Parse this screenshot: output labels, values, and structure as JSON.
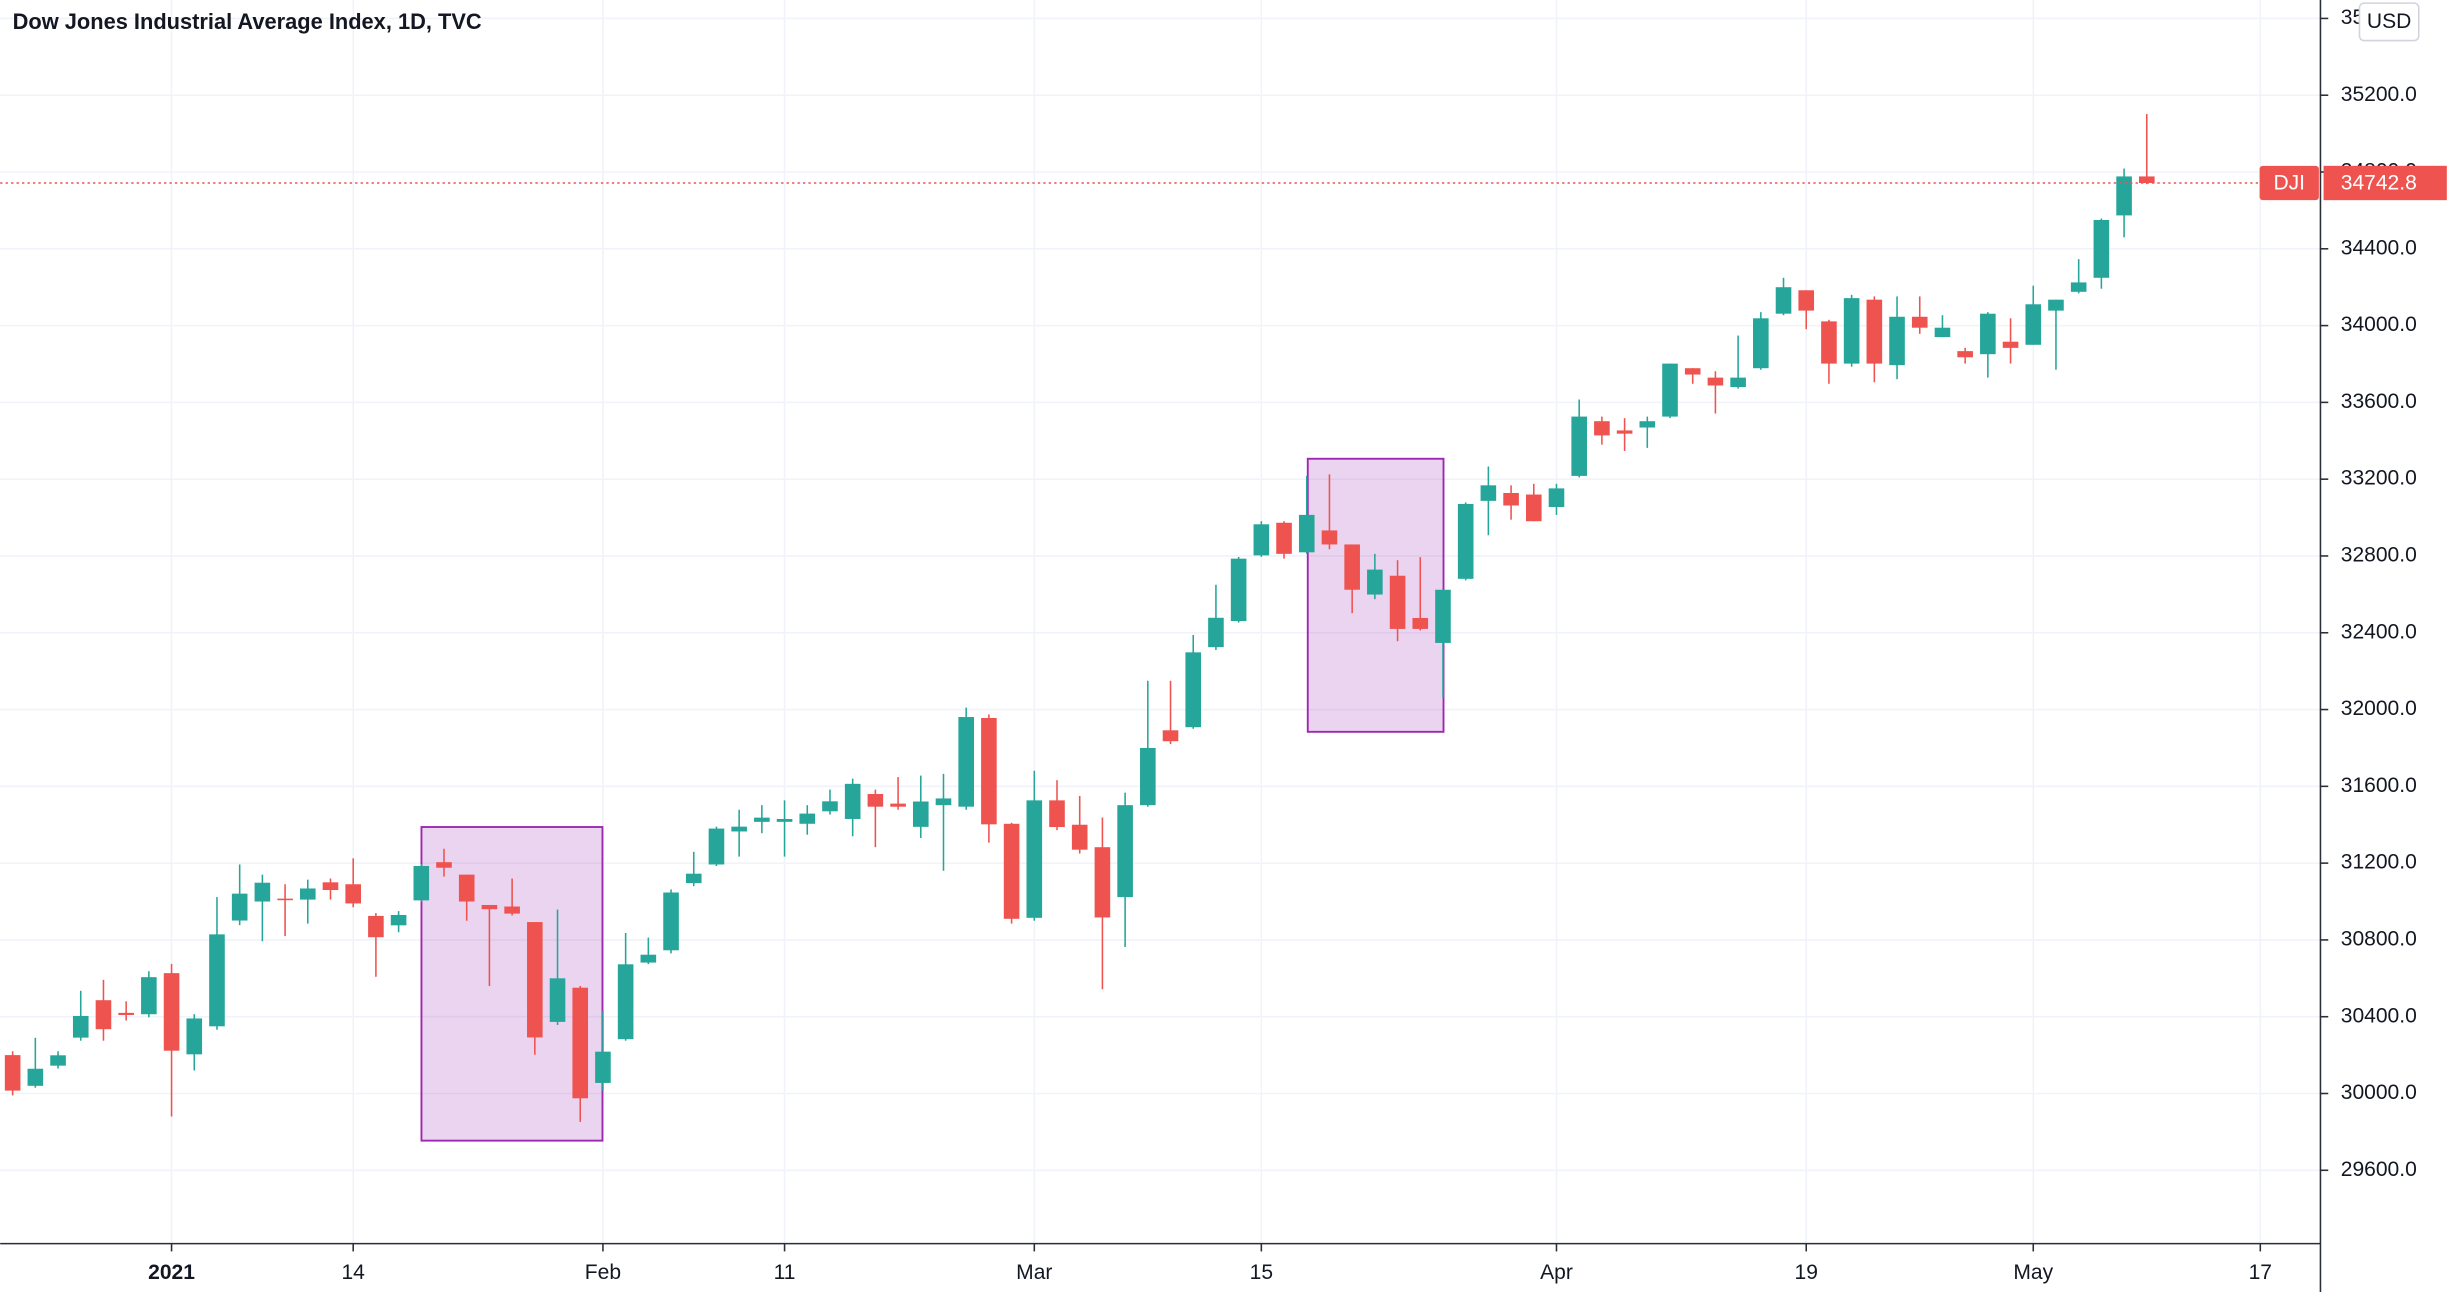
{
  "chart_data": {
    "type": "candlestick",
    "title": "Dow Jones Industrial Average Index, 1D, TVC",
    "symbol": "DJI",
    "currency": "USD",
    "last_price": 34742.8,
    "up_color": "#26a69a",
    "down_color": "#ef5350",
    "ylim": [
      29218,
      35696
    ],
    "yticks": [
      {
        "value": 29600,
        "label": "29600.0"
      },
      {
        "value": 30000,
        "label": "30000.0"
      },
      {
        "value": 30400,
        "label": "30400.0"
      },
      {
        "value": 30800,
        "label": "30800.0"
      },
      {
        "value": 31200,
        "label": "31200.0"
      },
      {
        "value": 31600,
        "label": "31600.0"
      },
      {
        "value": 32000,
        "label": "32000.0"
      },
      {
        "value": 32400,
        "label": "32400.0"
      },
      {
        "value": 32800,
        "label": "32800.0"
      },
      {
        "value": 33200,
        "label": "33200.0"
      },
      {
        "value": 33600,
        "label": "33600.0"
      },
      {
        "value": 34000,
        "label": "34000.0"
      },
      {
        "value": 34400,
        "label": "34400.0"
      },
      {
        "value": 34800,
        "label": "34800.0"
      },
      {
        "value": 35200,
        "label": "35200.0"
      },
      {
        "value": 35600,
        "label": "35600.0"
      }
    ],
    "grid": true,
    "categories": [
      null,
      null,
      null,
      null,
      null,
      null,
      null,
      "2021",
      null,
      null,
      null,
      null,
      null,
      null,
      null,
      "14",
      null,
      null,
      null,
      null,
      null,
      null,
      null,
      null,
      null,
      null,
      "Feb",
      null,
      null,
      null,
      null,
      null,
      null,
      null,
      "11",
      null,
      null,
      null,
      null,
      null,
      null,
      null,
      null,
      null,
      null,
      "Mar",
      null,
      null,
      null,
      null,
      null,
      null,
      null,
      null,
      null,
      "15",
      null,
      null,
      null,
      null,
      null,
      null,
      null,
      null,
      null,
      null,
      null,
      null,
      "Apr",
      null,
      null,
      null,
      null,
      null,
      null,
      null,
      null,
      null,
      null,
      "19",
      null,
      null,
      null,
      null,
      null,
      null,
      null,
      null,
      null,
      "May",
      null,
      null,
      null,
      null,
      null,
      null,
      null,
      null,
      null,
      "17",
      null,
      null
    ],
    "open": [
      30200,
      30040,
      30145,
      30291,
      30486,
      30420,
      30413,
      30627,
      30204,
      30350,
      30901,
      31000,
      31015,
      31010,
      31100,
      31090,
      30925,
      30876,
      31006,
      31205,
      31140,
      30982,
      30974,
      30893,
      30373,
      30551,
      30055,
      30283,
      30682,
      30746,
      31096,
      31193,
      31365,
      31415,
      31415,
      31405,
      31470,
      31430,
      31560,
      31510,
      31389,
      31502,
      31494,
      31956,
      31405,
      30915,
      31527,
      31400,
      31283,
      31023,
      31502,
      31892,
      31908,
      32325,
      32461,
      32803,
      32973,
      32819,
      32933,
      32860,
      32599,
      32697,
      32477,
      32347,
      32681,
      33087,
      33128,
      33120,
      33055,
      33217,
      33502,
      33454,
      33469,
      33526,
      33778,
      33729,
      33680,
      33778,
      34062,
      34184,
      34022,
      33802,
      34135,
      33794,
      34046,
      33940,
      33867,
      33851,
      33916,
      33900,
      34078,
      34176,
      34249,
      34574,
      34777,
      null,
      null,
      null,
      null,
      null,
      null,
      null
    ],
    "high": [
      30220,
      30290,
      30220,
      30535,
      30592,
      30480,
      30637,
      30675,
      30413,
      31023,
      31193,
      31140,
      31090,
      31114,
      31120,
      31225,
      30940,
      30950,
      31195,
      31275,
      31140,
      30982,
      31120,
      30893,
      30958,
      30560,
      30430,
      30836,
      30812,
      31063,
      31259,
      31390,
      31478,
      31502,
      31527,
      31502,
      31583,
      31640,
      31583,
      31648,
      31656,
      31665,
      32010,
      31974,
      31410,
      31681,
      31632,
      31550,
      31438,
      31567,
      32150,
      32150,
      32388,
      32650,
      32795,
      32981,
      32981,
      33217,
      33225,
      32860,
      32811,
      32778,
      32794,
      32624,
      33079,
      33266,
      33168,
      33176,
      33176,
      33615,
      33526,
      33518,
      33526,
      33802,
      33778,
      33762,
      33948,
      34070,
      34249,
      34184,
      34030,
      34160,
      34152,
      34152,
      34152,
      34054,
      33884,
      34070,
      34038,
      34208,
      34135,
      34346,
      34558,
      34818,
      35102,
      null,
      null,
      null,
      null,
      null,
      null,
      null
    ],
    "low": [
      29990,
      30030,
      30130,
      30275,
      30275,
      30380,
      30397,
      29880,
      30120,
      30332,
      30877,
      30793,
      30820,
      30885,
      31010,
      30970,
      30608,
      30840,
      30998,
      31130,
      30900,
      30560,
      30927,
      30202,
      30357,
      29852,
      30015,
      30275,
      30674,
      30730,
      31080,
      31185,
      31234,
      31356,
      31234,
      31348,
      31453,
      31340,
      31283,
      31478,
      31331,
      31160,
      31478,
      31307,
      30885,
      30900,
      31372,
      31250,
      30543,
      30763,
      31494,
      31820,
      31900,
      32310,
      32453,
      32795,
      32786,
      32811,
      32835,
      32502,
      32575,
      32356,
      32412,
      32063,
      32673,
      32908,
      32989,
      32981,
      33014,
      33209,
      33380,
      33347,
      33363,
      33518,
      33697,
      33542,
      33672,
      33770,
      34054,
      33981,
      33697,
      33786,
      33705,
      33721,
      33957,
      33940,
      33802,
      33729,
      33802,
      33900,
      33770,
      34168,
      34192,
      34460,
      34737,
      null,
      null,
      null,
      null,
      null,
      null,
      null
    ],
    "close": [
      30015,
      30129,
      30199,
      30404,
      30335,
      30409,
      30606,
      30223,
      30391,
      30829,
      31041,
      31098,
      31008,
      31068,
      31060,
      30990,
      30814,
      30930,
      31185,
      31176,
      31000,
      30960,
      30937,
      30292,
      30600,
      29975,
      30218,
      30673,
      30723,
      31047,
      31145,
      31380,
      31390,
      31437,
      31430,
      31458,
      31522,
      31613,
      31494,
      31494,
      31521,
      31537,
      31961,
      31402,
      30910,
      31527,
      31388,
      31270,
      30917,
      31502,
      31800,
      31835,
      32298,
      32478,
      32786,
      32965,
      32811,
      33014,
      32860,
      32624,
      32729,
      32420,
      32420,
      32624,
      33071,
      33168,
      33063,
      32981,
      33152,
      33526,
      33428,
      33437,
      33502,
      33802,
      33745,
      33688,
      33729,
      34038,
      34200,
      34078,
      33802,
      34143,
      33802,
      34046,
      33989,
      33989,
      33835,
      34062,
      33884,
      34111,
      34135,
      34225,
      34550,
      34777,
      34742.8,
      null,
      null,
      null,
      null,
      null,
      null,
      null
    ]
  }
}
